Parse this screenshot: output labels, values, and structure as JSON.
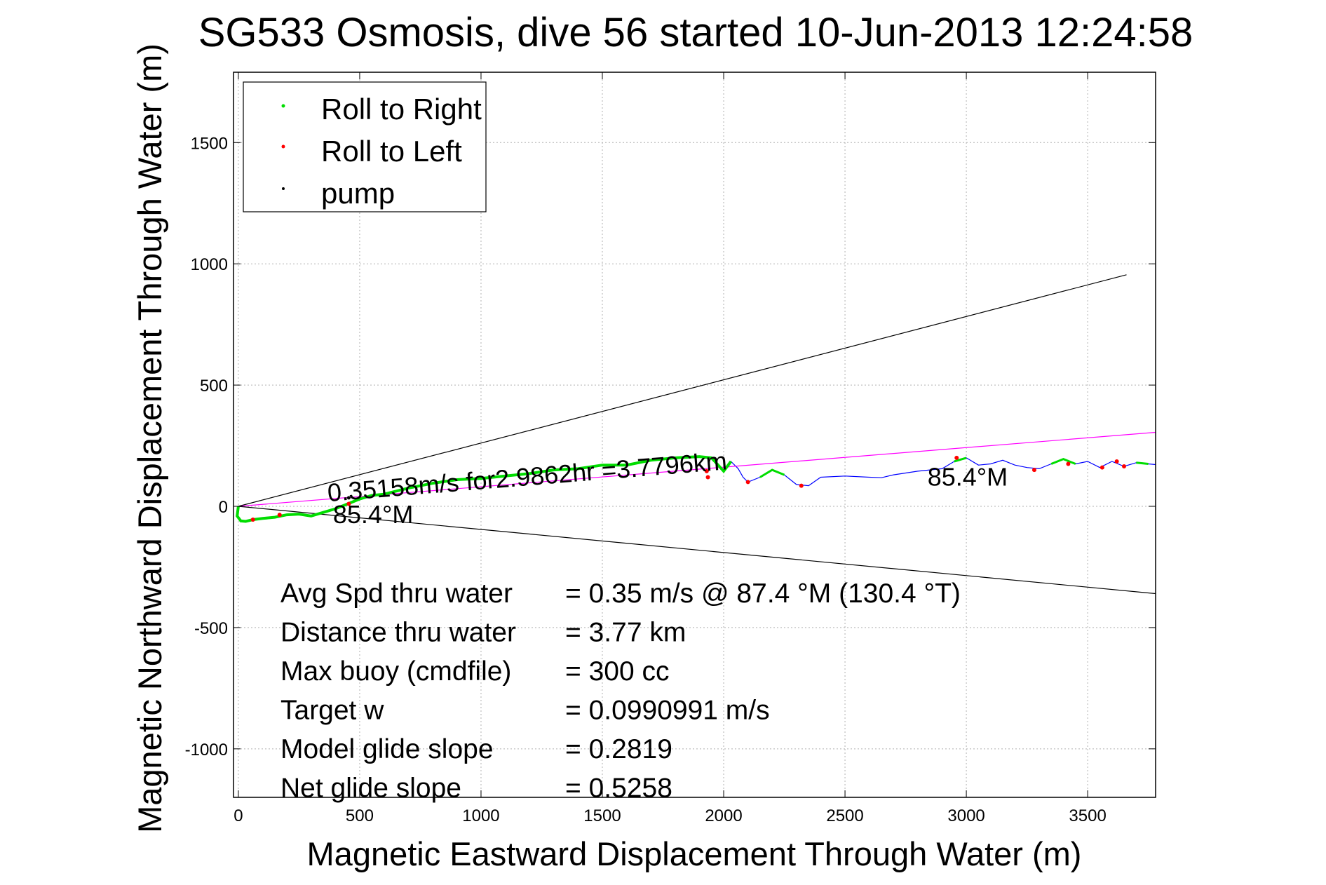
{
  "chart_data": {
    "type": "line",
    "title": "SG533 Osmosis, dive 56 started 10-Jun-2013 12:24:58",
    "xlabel": "Magnetic Eastward Displacement Through Water (m)",
    "ylabel": "Magnetic Northward Displacement Through Water (m)",
    "xlim": [
      -20,
      3780
    ],
    "ylim": [
      -1200,
      1790
    ],
    "xticks": [
      0,
      500,
      1000,
      1500,
      2000,
      2500,
      3000,
      3500
    ],
    "yticks": [
      -1000,
      -500,
      0,
      500,
      1000,
      1500
    ],
    "grid": true,
    "legend_position": "top-left",
    "legend": [
      {
        "label": "Roll to Right",
        "color": "#00dd00"
      },
      {
        "label": "Roll to Left",
        "color": "#ff0000"
      },
      {
        "label": "pump",
        "color": "#000000"
      }
    ],
    "colors": {
      "track": "#0000ff",
      "right": "#00dd00",
      "left": "#ff0000",
      "pump": "#000000",
      "heading": "#ff00ff",
      "cone": "#000000"
    },
    "series": [
      {
        "name": "track",
        "x": [
          0,
          -5,
          10,
          30,
          60,
          100,
          150,
          200,
          250,
          300,
          350,
          400,
          450,
          500,
          550,
          600,
          700,
          800,
          900,
          1000,
          1100,
          1200,
          1300,
          1400,
          1500,
          1600,
          1700,
          1800,
          1900,
          1950,
          2000,
          2030,
          2060,
          2080,
          2100,
          2150,
          2200,
          2250,
          2300,
          2350,
          2400,
          2500,
          2600,
          2650,
          2700,
          2800,
          2900,
          2950,
          3000,
          3050,
          3100,
          3150,
          3200,
          3250,
          3300,
          3350,
          3400,
          3450,
          3500,
          3550,
          3600,
          3650,
          3700,
          3750,
          3780
        ],
        "y": [
          0,
          -40,
          -60,
          -62,
          -55,
          -50,
          -45,
          -35,
          -32,
          -40,
          -25,
          -10,
          10,
          30,
          45,
          50,
          75,
          95,
          110,
          115,
          125,
          135,
          150,
          155,
          170,
          170,
          190,
          200,
          205,
          200,
          145,
          185,
          155,
          120,
          100,
          120,
          150,
          130,
          90,
          85,
          120,
          125,
          120,
          118,
          130,
          145,
          155,
          185,
          200,
          170,
          175,
          190,
          170,
          160,
          155,
          175,
          195,
          175,
          185,
          160,
          185,
          165,
          180,
          175,
          172
        ]
      },
      {
        "name": "heading",
        "x": [
          0,
          3780
        ],
        "y": [
          0,
          305
        ]
      },
      {
        "name": "cone-upper",
        "x": [
          0,
          3660
        ],
        "y": [
          0,
          955
        ]
      },
      {
        "name": "cone-lower",
        "x": [
          0,
          3780
        ],
        "y": [
          0,
          -360
        ]
      }
    ],
    "roll_left_points": {
      "x": [
        60,
        170,
        455,
        1930,
        1935,
        2100,
        2320,
        2960,
        3280,
        3420,
        3560,
        3620,
        3650
      ],
      "y": [
        -55,
        -35,
        10,
        145,
        120,
        100,
        85,
        200,
        150,
        175,
        160,
        185,
        165
      ]
    },
    "pump_points": {
      "x": [
        455
      ],
      "y": [
        35
      ]
    },
    "annotations": [
      {
        "text": "0.35158m/s for2.9862hr =3.7796km",
        "x": 370,
        "y": 20
      },
      {
        "text": "85.4°M",
        "x": 390,
        "y": -70
      },
      {
        "text": "85.4°M",
        "x": 2840,
        "y": 85
      }
    ],
    "stats": [
      {
        "label": "Avg Spd thru water",
        "value": "=  0.35 m/s @  87.4 °M (130.4 °T)"
      },
      {
        "label": "Distance thru water",
        "value": "=  3.77 km"
      },
      {
        "label": "Max buoy (cmdfile)",
        "value": "= 300 cc"
      },
      {
        "label": "Target w",
        "value": "= 0.0990991 m/s"
      },
      {
        "label": "Model glide slope",
        "value": "= 0.2819"
      },
      {
        "label": "Net glide slope",
        "value": "= 0.5258"
      }
    ]
  }
}
